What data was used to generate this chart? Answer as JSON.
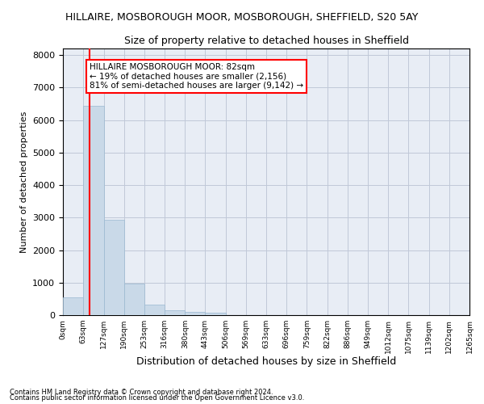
{
  "title": "HILLAIRE, MOSBOROUGH MOOR, MOSBOROUGH, SHEFFIELD, S20 5AY",
  "subtitle": "Size of property relative to detached houses in Sheffield",
  "xlabel": "Distribution of detached houses by size in Sheffield",
  "ylabel": "Number of detached properties",
  "bar_color": "#c9d9e8",
  "bar_edge_color": "#9ab8d0",
  "grid_color": "#c0c8d8",
  "bg_color": "#e8edf5",
  "vline_color": "red",
  "vline_x": 82,
  "annotation_text": "HILLAIRE MOSBOROUGH MOOR: 82sqm\n← 19% of detached houses are smaller (2,156)\n81% of semi-detached houses are larger (9,142) →",
  "footnote1": "Contains HM Land Registry data © Crown copyright and database right 2024.",
  "footnote2": "Contains public sector information licensed under the Open Government Licence v3.0.",
  "bin_edges": [
    0,
    63,
    127,
    190,
    253,
    316,
    380,
    443,
    506,
    569,
    633,
    696,
    759,
    822,
    886,
    949,
    1012,
    1075,
    1139,
    1202,
    1265
  ],
  "bin_heights": [
    540,
    6430,
    2920,
    960,
    330,
    160,
    100,
    75,
    0,
    0,
    0,
    0,
    0,
    0,
    0,
    0,
    0,
    0,
    0,
    0
  ],
  "ylim": [
    0,
    8200
  ],
  "yticks": [
    0,
    1000,
    2000,
    3000,
    4000,
    5000,
    6000,
    7000,
    8000
  ]
}
